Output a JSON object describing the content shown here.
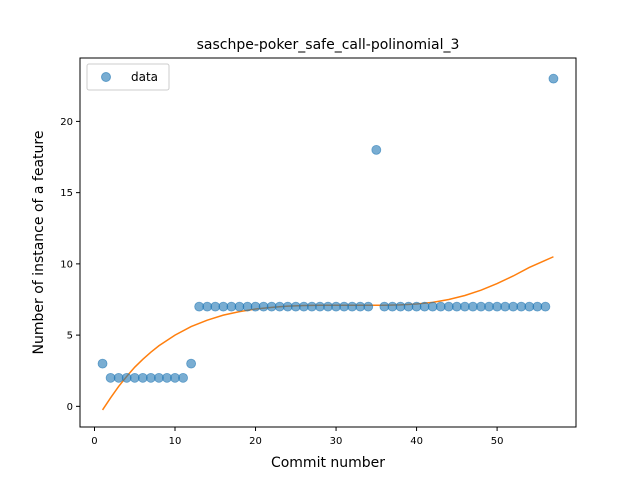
{
  "chart_data": {
    "type": "scatter",
    "title": "saschpe-poker_safe_call-polinomial_3",
    "xlabel": "Commit number",
    "ylabel": "Number of instance of a feature",
    "xlim": [
      -1.8,
      59.8
    ],
    "ylim": [
      -1.45,
      24.45
    ],
    "xticks": [
      0,
      10,
      20,
      30,
      40,
      50
    ],
    "yticks": [
      0,
      5,
      10,
      15,
      20
    ],
    "grid": false,
    "legend": {
      "placement": "top-left",
      "entries": [
        "data"
      ]
    },
    "colors": {
      "points": "#1f77b4",
      "fit": "#ff7f0e"
    },
    "series": [
      {
        "name": "data",
        "kind": "scatter",
        "x": [
          1,
          2,
          3,
          4,
          5,
          6,
          7,
          8,
          9,
          10,
          11,
          12,
          13,
          14,
          15,
          16,
          17,
          18,
          19,
          20,
          21,
          22,
          23,
          24,
          25,
          26,
          27,
          28,
          29,
          30,
          31,
          32,
          33,
          34,
          35,
          36,
          37,
          38,
          39,
          40,
          41,
          42,
          43,
          44,
          45,
          46,
          47,
          48,
          49,
          50,
          51,
          52,
          53,
          54,
          55,
          56,
          57
        ],
        "y": [
          3,
          2,
          2,
          2,
          2,
          2,
          2,
          2,
          2,
          2,
          2,
          3,
          7,
          7,
          7,
          7,
          7,
          7,
          7,
          7,
          7,
          7,
          7,
          7,
          7,
          7,
          7,
          7,
          7,
          7,
          7,
          7,
          7,
          7,
          18,
          7,
          7,
          7,
          7,
          7,
          7,
          7,
          7,
          7,
          7,
          7,
          7,
          7,
          7,
          7,
          7,
          7,
          7,
          7,
          7,
          7,
          23
        ]
      },
      {
        "kind": "line",
        "x": [
          1,
          2,
          3,
          4,
          5,
          6,
          7,
          8,
          10,
          12,
          14,
          16,
          18,
          20,
          22,
          24,
          26,
          28,
          30,
          32,
          34,
          36,
          38,
          40,
          42,
          44,
          46,
          48,
          50,
          52,
          54,
          56,
          57
        ],
        "y": [
          -0.25,
          0.6,
          1.4,
          2.1,
          2.75,
          3.3,
          3.8,
          4.25,
          5.0,
          5.6,
          6.05,
          6.4,
          6.65,
          6.83,
          6.95,
          7.03,
          7.08,
          7.1,
          7.1,
          7.1,
          7.1,
          7.1,
          7.12,
          7.18,
          7.3,
          7.5,
          7.78,
          8.15,
          8.62,
          9.15,
          9.75,
          10.25,
          10.5
        ]
      }
    ]
  }
}
